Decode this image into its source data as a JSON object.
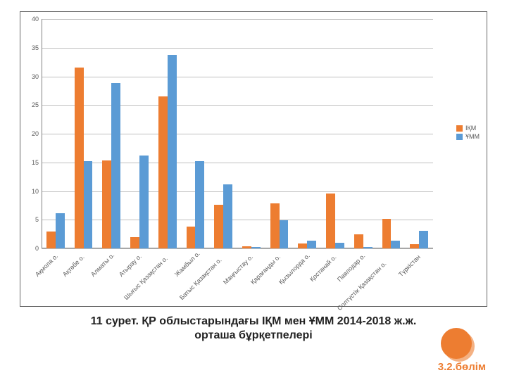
{
  "chart": {
    "type": "bar",
    "ylim": [
      0,
      40
    ],
    "ytick_step": 5,
    "grid_color": "#bfbfbf",
    "axis_color": "#808080",
    "tick_fontsize": 9,
    "tick_color": "#595959",
    "background_color": "#ffffff",
    "frame_border_color": "#666666",
    "bar_group_gap": 0.35,
    "categories": [
      "Ақмола о.",
      "Ақтөбе о.",
      "Алматы о.",
      "Атырау о.",
      "Шығыс Қазақстан о.",
      "Жамбыл о.",
      "Батыс Қазақстан о.",
      "Маңғыстау о.",
      "Қарағанды о.",
      "Қызылорда о.",
      "Қостанай о.",
      "Павлодар о.",
      "Солтүстік Қазақстан о.",
      "Түркістан"
    ],
    "series": [
      {
        "name": "ІҚМ",
        "color": "#ed7d31",
        "values": [
          2.9,
          31.5,
          15.3,
          2.0,
          26.5,
          3.8,
          7.6,
          0.4,
          7.9,
          0.9,
          9.6,
          2.5,
          5.1,
          0.7
        ]
      },
      {
        "name": "ҰММ",
        "color": "#5b9bd5",
        "values": [
          6.1,
          15.2,
          28.8,
          16.2,
          33.8,
          15.2,
          11.2,
          0.2,
          4.9,
          1.4,
          1.0,
          0.3,
          1.4,
          3.1
        ]
      }
    ],
    "xlabel_rotation": -45
  },
  "legend": {
    "items": [
      {
        "label": "ІҚМ",
        "color": "#ed7d31"
      },
      {
        "label": "ҰММ",
        "color": "#5b9bd5"
      }
    ]
  },
  "caption": {
    "line1": "11 сурет. ҚР облыстарындағы ІҚМ мен ҰММ 2014-2018 ж.ж.",
    "line2": "орташа бұрқетпелері",
    "fontsize": 16,
    "color": "#222222"
  },
  "decoration": {
    "circle_color": "#ed7d31",
    "circle_shadow": "#f4b183"
  },
  "section": {
    "label": "3.2.бөлім",
    "color": "#ed7d31",
    "fontsize": 15
  }
}
